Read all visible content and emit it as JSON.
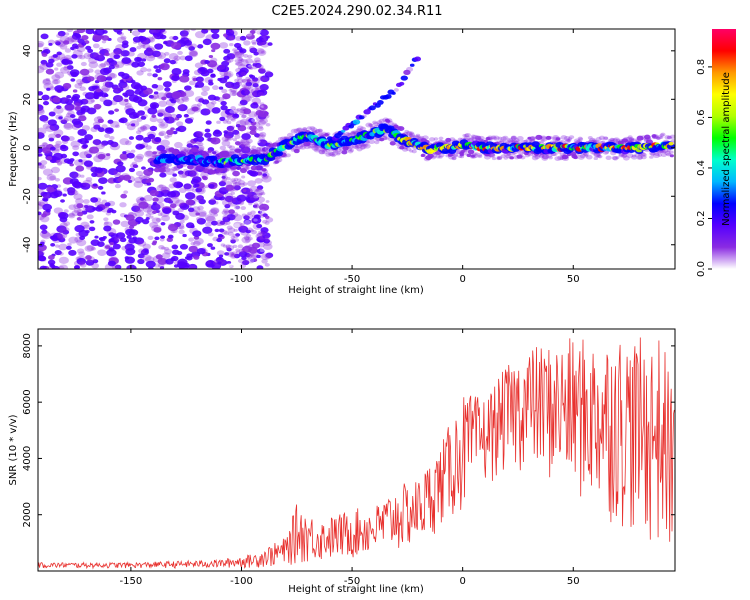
{
  "title": "C2E5.2024.290.02.34.R11",
  "chart_data": [
    {
      "type": "scatter",
      "subtype": "spectrogram",
      "xlabel": "Height of straight line (km)",
      "ylabel": "Frequency (Hz)",
      "xlim": [
        -192,
        96
      ],
      "ylim": [
        -50,
        49
      ],
      "xticks": [
        -150,
        -100,
        -50,
        0,
        50
      ],
      "yticks": [
        -40,
        -20,
        0,
        20,
        40
      ],
      "ridge": {
        "description_points_x": [
          -135,
          -120,
          -110,
          -100,
          -90,
          -80,
          -70,
          -60,
          -50,
          -40,
          -35,
          -30,
          -25,
          -20,
          -15,
          -10,
          -5,
          0,
          10,
          20,
          30,
          40,
          50,
          60,
          70,
          80,
          90,
          95
        ],
        "description_points_y": [
          -5,
          -5,
          -6,
          -5,
          -5,
          1,
          5,
          1,
          3,
          6,
          8,
          5,
          3,
          1,
          -1,
          0,
          0,
          1,
          0,
          0,
          0,
          0,
          0,
          0,
          0,
          0,
          1,
          1
        ]
      },
      "branch": {
        "x": [
          -60,
          -50,
          -40,
          -30,
          -20
        ],
        "y": [
          3,
          10,
          17,
          24,
          38
        ]
      }
    },
    {
      "type": "line",
      "xlabel": "Height of straight line (km)",
      "ylabel": "SNR (10 * v/v)",
      "xlim": [
        -192,
        96
      ],
      "ylim": [
        0,
        8600
      ],
      "xticks": [
        -150,
        -100,
        -50,
        0,
        50
      ],
      "yticks": [
        2000,
        4000,
        6000,
        8000
      ],
      "envelope": {
        "x": [
          -192,
          -150,
          -110,
          -95,
          -80,
          -75,
          -65,
          -50,
          -40,
          -30,
          -20,
          -10,
          0,
          10,
          20,
          30,
          40,
          50,
          60,
          70,
          80,
          90,
          96
        ],
        "upper": [
          300,
          300,
          400,
          600,
          1200,
          2400,
          1800,
          2200,
          2300,
          3000,
          3300,
          4500,
          6300,
          6200,
          7300,
          8000,
          8100,
          8300,
          8300,
          8500,
          8300,
          8400,
          6300
        ],
        "lower": [
          100,
          100,
          100,
          100,
          150,
          200,
          300,
          400,
          500,
          600,
          800,
          1500,
          2000,
          3000,
          3500,
          3500,
          3000,
          2500,
          2000,
          1500,
          1000,
          500,
          500
        ]
      }
    }
  ],
  "colorbar": {
    "label": "Normalized spectral amplitude",
    "range": [
      0,
      0.95
    ],
    "ticks": [
      "0.0",
      "0.2",
      "0.4",
      "0.6",
      "0.8"
    ],
    "colors": [
      "#ffffff",
      "#8a2be2",
      "#5500ff",
      "#0000ff",
      "#00b7ff",
      "#00ffcc",
      "#00ff00",
      "#b0ff00",
      "#ffff00",
      "#ff9900",
      "#ff0000",
      "#ff0066"
    ]
  },
  "series_color": "#e8312e"
}
